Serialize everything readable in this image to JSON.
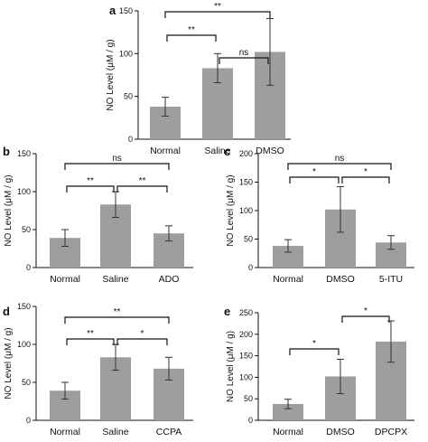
{
  "chart_data": [
    {
      "label": "a",
      "type": "bar",
      "categories": [
        "Normal",
        "Saline",
        "DMSO"
      ],
      "values": [
        38,
        83,
        102
      ],
      "errors": [
        11,
        17,
        39
      ],
      "ylabel": "NO Level (μM / g)",
      "ylim": [
        0,
        150
      ],
      "yticks": [
        "0",
        "50",
        "100",
        "150"
      ],
      "significance": [
        {
          "from": 0,
          "to": 2,
          "label": "**"
        },
        {
          "from": 0,
          "to": 1,
          "label": "**"
        },
        {
          "from": 1,
          "to": 2,
          "label": "ns"
        }
      ]
    },
    {
      "label": "b",
      "type": "bar",
      "categories": [
        "Normal",
        "Saline",
        "ADO"
      ],
      "values": [
        39,
        83,
        45
      ],
      "errors": [
        11,
        17,
        10
      ],
      "ylabel": "NO Level (μM / g)",
      "ylim": [
        0,
        150
      ],
      "yticks": [
        "0",
        "50",
        "100",
        "150"
      ],
      "significance": [
        {
          "from": 0,
          "to": 2,
          "label": "ns"
        },
        {
          "from": 0,
          "to": 1,
          "label": "**"
        },
        {
          "from": 1,
          "to": 2,
          "label": "**"
        }
      ]
    },
    {
      "label": "c",
      "type": "bar",
      "categories": [
        "Normal",
        "DMSO",
        "5-ITU"
      ],
      "values": [
        38,
        102,
        44
      ],
      "errors": [
        11,
        40,
        12
      ],
      "ylabel": "NO Level (μM / g)",
      "ylim": [
        0,
        200
      ],
      "yticks": [
        "0",
        "50",
        "100",
        "150",
        "200"
      ],
      "significance": [
        {
          "from": 0,
          "to": 2,
          "label": "ns"
        },
        {
          "from": 0,
          "to": 1,
          "label": "*"
        },
        {
          "from": 1,
          "to": 2,
          "label": "*"
        }
      ]
    },
    {
      "label": "d",
      "type": "bar",
      "categories": [
        "Normal",
        "Saline",
        "CCPA"
      ],
      "values": [
        39,
        83,
        68
      ],
      "errors": [
        11,
        17,
        15
      ],
      "ylabel": "NO Level (μM / g)",
      "ylim": [
        0,
        150
      ],
      "yticks": [
        "0",
        "50",
        "100",
        "150"
      ],
      "significance": [
        {
          "from": 0,
          "to": 2,
          "label": "**"
        },
        {
          "from": 0,
          "to": 1,
          "label": "**"
        },
        {
          "from": 1,
          "to": 2,
          "label": "*"
        }
      ]
    },
    {
      "label": "e",
      "type": "bar",
      "categories": [
        "Normal",
        "DMSO",
        "DPCPX"
      ],
      "values": [
        38,
        102,
        183
      ],
      "errors": [
        11,
        40,
        48
      ],
      "ylabel": "NO Level (μM / g)",
      "ylim": [
        0,
        250
      ],
      "yticks": [
        "0",
        "50",
        "100",
        "150",
        "200",
        "250"
      ],
      "significance": [
        {
          "from": 0,
          "to": 1,
          "label": "*"
        },
        {
          "from": 1,
          "to": 2,
          "label": "*"
        }
      ]
    }
  ]
}
